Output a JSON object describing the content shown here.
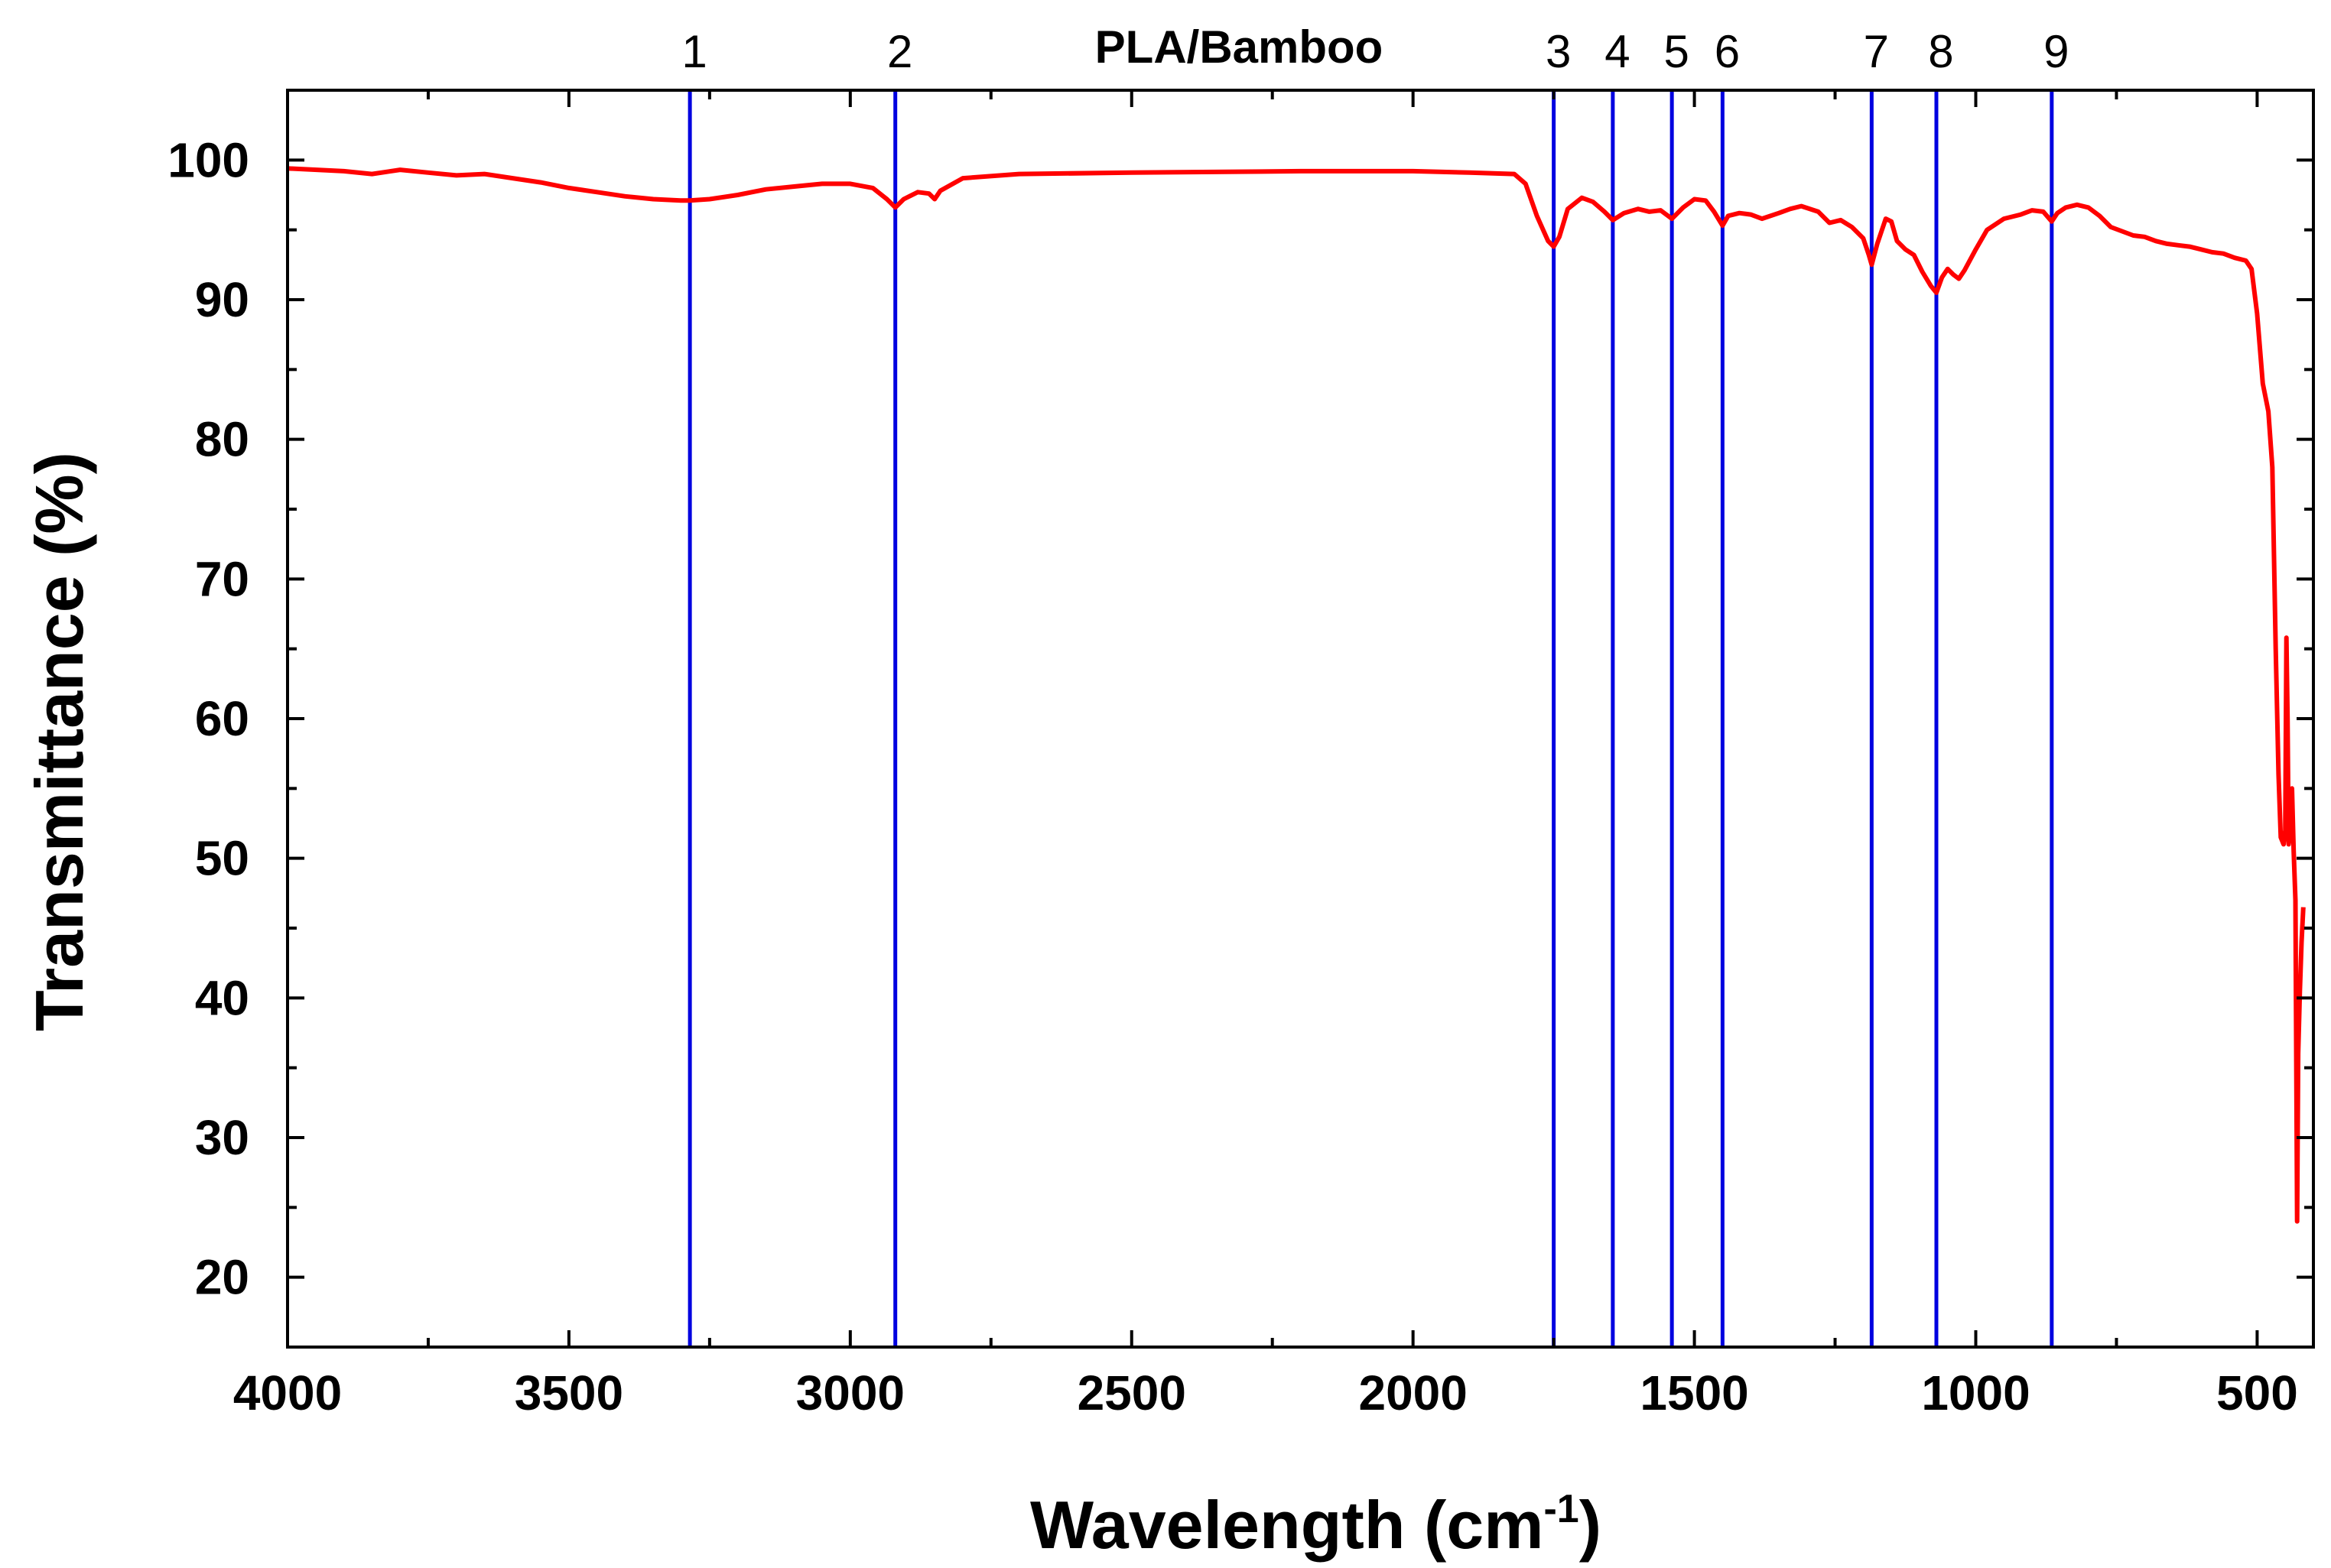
{
  "chart_data": {
    "type": "line",
    "title": "PLA/Bamboo",
    "xlabel": "Wavelength",
    "xlabel_unit": "(cm",
    "xlabel_unit_exp": "-1",
    "xlabel_unit_close": ")",
    "ylabel": "Transmittance (%)",
    "xlim": [
      4000,
      400
    ],
    "ylim": [
      15,
      105
    ],
    "x_ticks": [
      4000,
      3500,
      3000,
      2500,
      2000,
      1500,
      1000,
      500
    ],
    "y_ticks": [
      20,
      30,
      40,
      50,
      60,
      70,
      80,
      90,
      100
    ],
    "series_color": "#ff0000",
    "marker_color": "#0000e0",
    "markers": [
      {
        "label": "1",
        "x": 3285
      },
      {
        "label": "2",
        "x": 2920
      },
      {
        "label": "3",
        "x": 1750
      },
      {
        "label": "4",
        "x": 1645
      },
      {
        "label": "5",
        "x": 1540
      },
      {
        "label": "6",
        "x": 1450
      },
      {
        "label": "7",
        "x": 1185
      },
      {
        "label": "8",
        "x": 1070
      },
      {
        "label": "9",
        "x": 865
      }
    ],
    "series": [
      {
        "name": "PLA/Bamboo",
        "points": [
          [
            4000,
            99.4
          ],
          [
            3900,
            99.2
          ],
          [
            3850,
            99.0
          ],
          [
            3800,
            99.3
          ],
          [
            3750,
            99.1
          ],
          [
            3700,
            98.9
          ],
          [
            3650,
            99.0
          ],
          [
            3600,
            98.7
          ],
          [
            3550,
            98.4
          ],
          [
            3500,
            98.0
          ],
          [
            3450,
            97.7
          ],
          [
            3400,
            97.4
          ],
          [
            3350,
            97.2
          ],
          [
            3300,
            97.1
          ],
          [
            3285,
            97.1
          ],
          [
            3250,
            97.2
          ],
          [
            3200,
            97.5
          ],
          [
            3150,
            97.9
          ],
          [
            3100,
            98.1
          ],
          [
            3050,
            98.3
          ],
          [
            3000,
            98.3
          ],
          [
            2960,
            98.0
          ],
          [
            2935,
            97.2
          ],
          [
            2920,
            96.6
          ],
          [
            2905,
            97.2
          ],
          [
            2880,
            97.7
          ],
          [
            2860,
            97.6
          ],
          [
            2850,
            97.2
          ],
          [
            2840,
            97.8
          ],
          [
            2800,
            98.7
          ],
          [
            2700,
            99.0
          ],
          [
            2500,
            99.1
          ],
          [
            2200,
            99.2
          ],
          [
            2000,
            99.2
          ],
          [
            1900,
            99.1
          ],
          [
            1820,
            99.0
          ],
          [
            1800,
            98.3
          ],
          [
            1780,
            96.0
          ],
          [
            1760,
            94.2
          ],
          [
            1750,
            93.8
          ],
          [
            1740,
            94.5
          ],
          [
            1725,
            96.5
          ],
          [
            1700,
            97.3
          ],
          [
            1680,
            97.0
          ],
          [
            1660,
            96.3
          ],
          [
            1645,
            95.7
          ],
          [
            1625,
            96.2
          ],
          [
            1600,
            96.5
          ],
          [
            1580,
            96.3
          ],
          [
            1560,
            96.4
          ],
          [
            1540,
            95.8
          ],
          [
            1520,
            96.6
          ],
          [
            1500,
            97.2
          ],
          [
            1480,
            97.1
          ],
          [
            1465,
            96.3
          ],
          [
            1450,
            95.3
          ],
          [
            1440,
            96.0
          ],
          [
            1420,
            96.2
          ],
          [
            1400,
            96.1
          ],
          [
            1380,
            95.8
          ],
          [
            1350,
            96.2
          ],
          [
            1330,
            96.5
          ],
          [
            1310,
            96.7
          ],
          [
            1280,
            96.3
          ],
          [
            1260,
            95.5
          ],
          [
            1240,
            95.7
          ],
          [
            1220,
            95.2
          ],
          [
            1200,
            94.4
          ],
          [
            1190,
            93.2
          ],
          [
            1185,
            92.5
          ],
          [
            1175,
            94.0
          ],
          [
            1160,
            95.8
          ],
          [
            1150,
            95.6
          ],
          [
            1140,
            94.2
          ],
          [
            1125,
            93.6
          ],
          [
            1110,
            93.2
          ],
          [
            1095,
            92.0
          ],
          [
            1080,
            91.0
          ],
          [
            1070,
            90.5
          ],
          [
            1060,
            91.6
          ],
          [
            1050,
            92.2
          ],
          [
            1040,
            91.8
          ],
          [
            1030,
            91.5
          ],
          [
            1020,
            92.1
          ],
          [
            1000,
            93.6
          ],
          [
            980,
            95.0
          ],
          [
            950,
            95.8
          ],
          [
            920,
            96.1
          ],
          [
            900,
            96.4
          ],
          [
            880,
            96.3
          ],
          [
            865,
            95.6
          ],
          [
            855,
            96.2
          ],
          [
            840,
            96.6
          ],
          [
            820,
            96.8
          ],
          [
            800,
            96.6
          ],
          [
            780,
            96.0
          ],
          [
            760,
            95.2
          ],
          [
            740,
            94.9
          ],
          [
            720,
            94.6
          ],
          [
            700,
            94.5
          ],
          [
            680,
            94.2
          ],
          [
            660,
            94.0
          ],
          [
            640,
            93.9
          ],
          [
            620,
            93.8
          ],
          [
            600,
            93.6
          ],
          [
            580,
            93.4
          ],
          [
            560,
            93.3
          ],
          [
            540,
            93.0
          ],
          [
            520,
            92.8
          ],
          [
            510,
            92.2
          ],
          [
            500,
            89.0
          ],
          [
            490,
            84.0
          ],
          [
            480,
            82.0
          ],
          [
            473,
            78.0
          ],
          [
            467,
            65.0
          ],
          [
            462,
            56.0
          ],
          [
            458,
            51.5
          ],
          [
            453,
            51.0
          ],
          [
            450,
            52.0
          ],
          [
            448,
            65.8
          ],
          [
            446,
            60.0
          ],
          [
            444,
            51.0
          ],
          [
            441,
            52.0
          ],
          [
            438,
            55.0
          ],
          [
            435,
            50.5
          ],
          [
            432,
            47.0
          ],
          [
            429,
            24.0
          ],
          [
            427,
            36.0
          ],
          [
            424,
            40.5
          ],
          [
            421,
            44.0
          ],
          [
            418,
            46.5
          ]
        ]
      }
    ]
  }
}
